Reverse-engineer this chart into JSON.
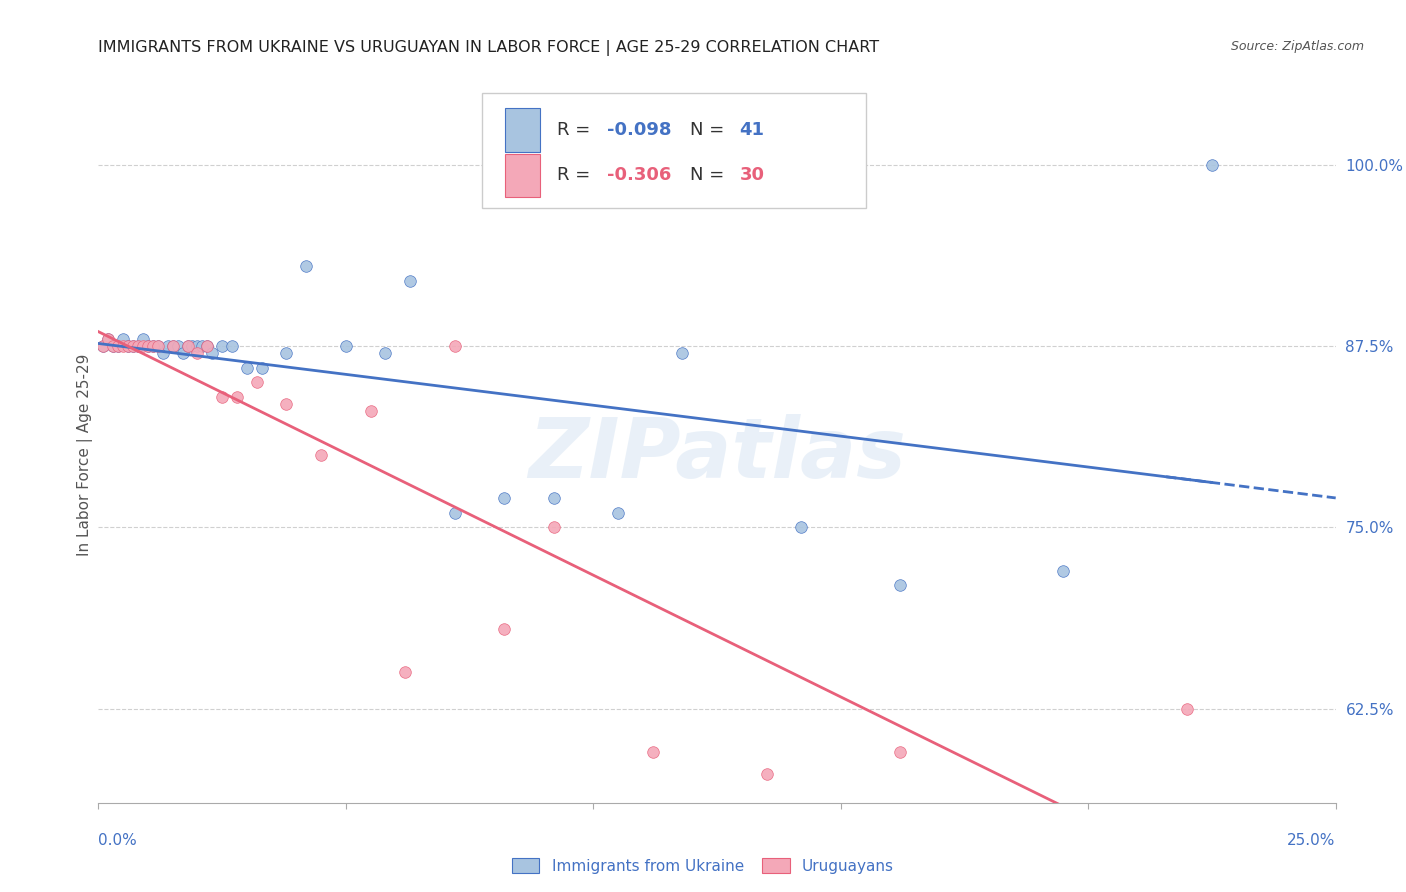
{
  "title": "IMMIGRANTS FROM UKRAINE VS URUGUAYAN IN LABOR FORCE | AGE 25-29 CORRELATION CHART",
  "source": "Source: ZipAtlas.com",
  "ylabel": "In Labor Force | Age 25-29",
  "xlim": [
    0.0,
    0.25
  ],
  "ylim": [
    0.56,
    1.04
  ],
  "yticks": [
    0.625,
    0.75,
    0.875,
    1.0
  ],
  "ytick_labels": [
    "62.5%",
    "75.0%",
    "87.5%",
    "100.0%"
  ],
  "ukraine_color": "#a8c4e0",
  "uruguayan_color": "#f4a8b8",
  "ukraine_line_color": "#4472c4",
  "uruguayan_line_color": "#e8607a",
  "axis_label_color": "#4472c4",
  "watermark": "ZIPatlas",
  "ukraine_R": -0.098,
  "uruguayan_R": -0.306,
  "ukraine_N": 41,
  "uruguayan_N": 30,
  "ukraine_x": [
    0.001,
    0.002,
    0.003,
    0.004,
    0.005,
    0.006,
    0.007,
    0.008,
    0.009,
    0.01,
    0.011,
    0.012,
    0.013,
    0.014,
    0.015,
    0.016,
    0.017,
    0.018,
    0.019,
    0.02,
    0.021,
    0.022,
    0.023,
    0.025,
    0.027,
    0.03,
    0.033,
    0.038,
    0.042,
    0.05,
    0.058,
    0.063,
    0.072,
    0.082,
    0.092,
    0.105,
    0.118,
    0.142,
    0.162,
    0.195,
    0.225
  ],
  "ukraine_y": [
    0.875,
    0.88,
    0.875,
    0.875,
    0.88,
    0.875,
    0.875,
    0.875,
    0.88,
    0.875,
    0.875,
    0.875,
    0.87,
    0.875,
    0.875,
    0.875,
    0.87,
    0.875,
    0.875,
    0.875,
    0.875,
    0.875,
    0.87,
    0.875,
    0.875,
    0.86,
    0.86,
    0.87,
    0.93,
    0.875,
    0.87,
    0.92,
    0.76,
    0.77,
    0.77,
    0.76,
    0.87,
    0.75,
    0.71,
    0.72,
    1.0
  ],
  "uruguay_x": [
    0.001,
    0.002,
    0.003,
    0.004,
    0.005,
    0.006,
    0.007,
    0.008,
    0.009,
    0.01,
    0.011,
    0.012,
    0.015,
    0.018,
    0.02,
    0.022,
    0.025,
    0.028,
    0.032,
    0.038,
    0.045,
    0.055,
    0.062,
    0.072,
    0.082,
    0.092,
    0.112,
    0.135,
    0.162,
    0.22
  ],
  "uruguay_y": [
    0.875,
    0.88,
    0.875,
    0.875,
    0.875,
    0.875,
    0.875,
    0.875,
    0.875,
    0.875,
    0.875,
    0.875,
    0.875,
    0.875,
    0.87,
    0.875,
    0.84,
    0.84,
    0.85,
    0.835,
    0.8,
    0.83,
    0.65,
    0.875,
    0.68,
    0.75,
    0.595,
    0.58,
    0.595,
    0.625
  ]
}
